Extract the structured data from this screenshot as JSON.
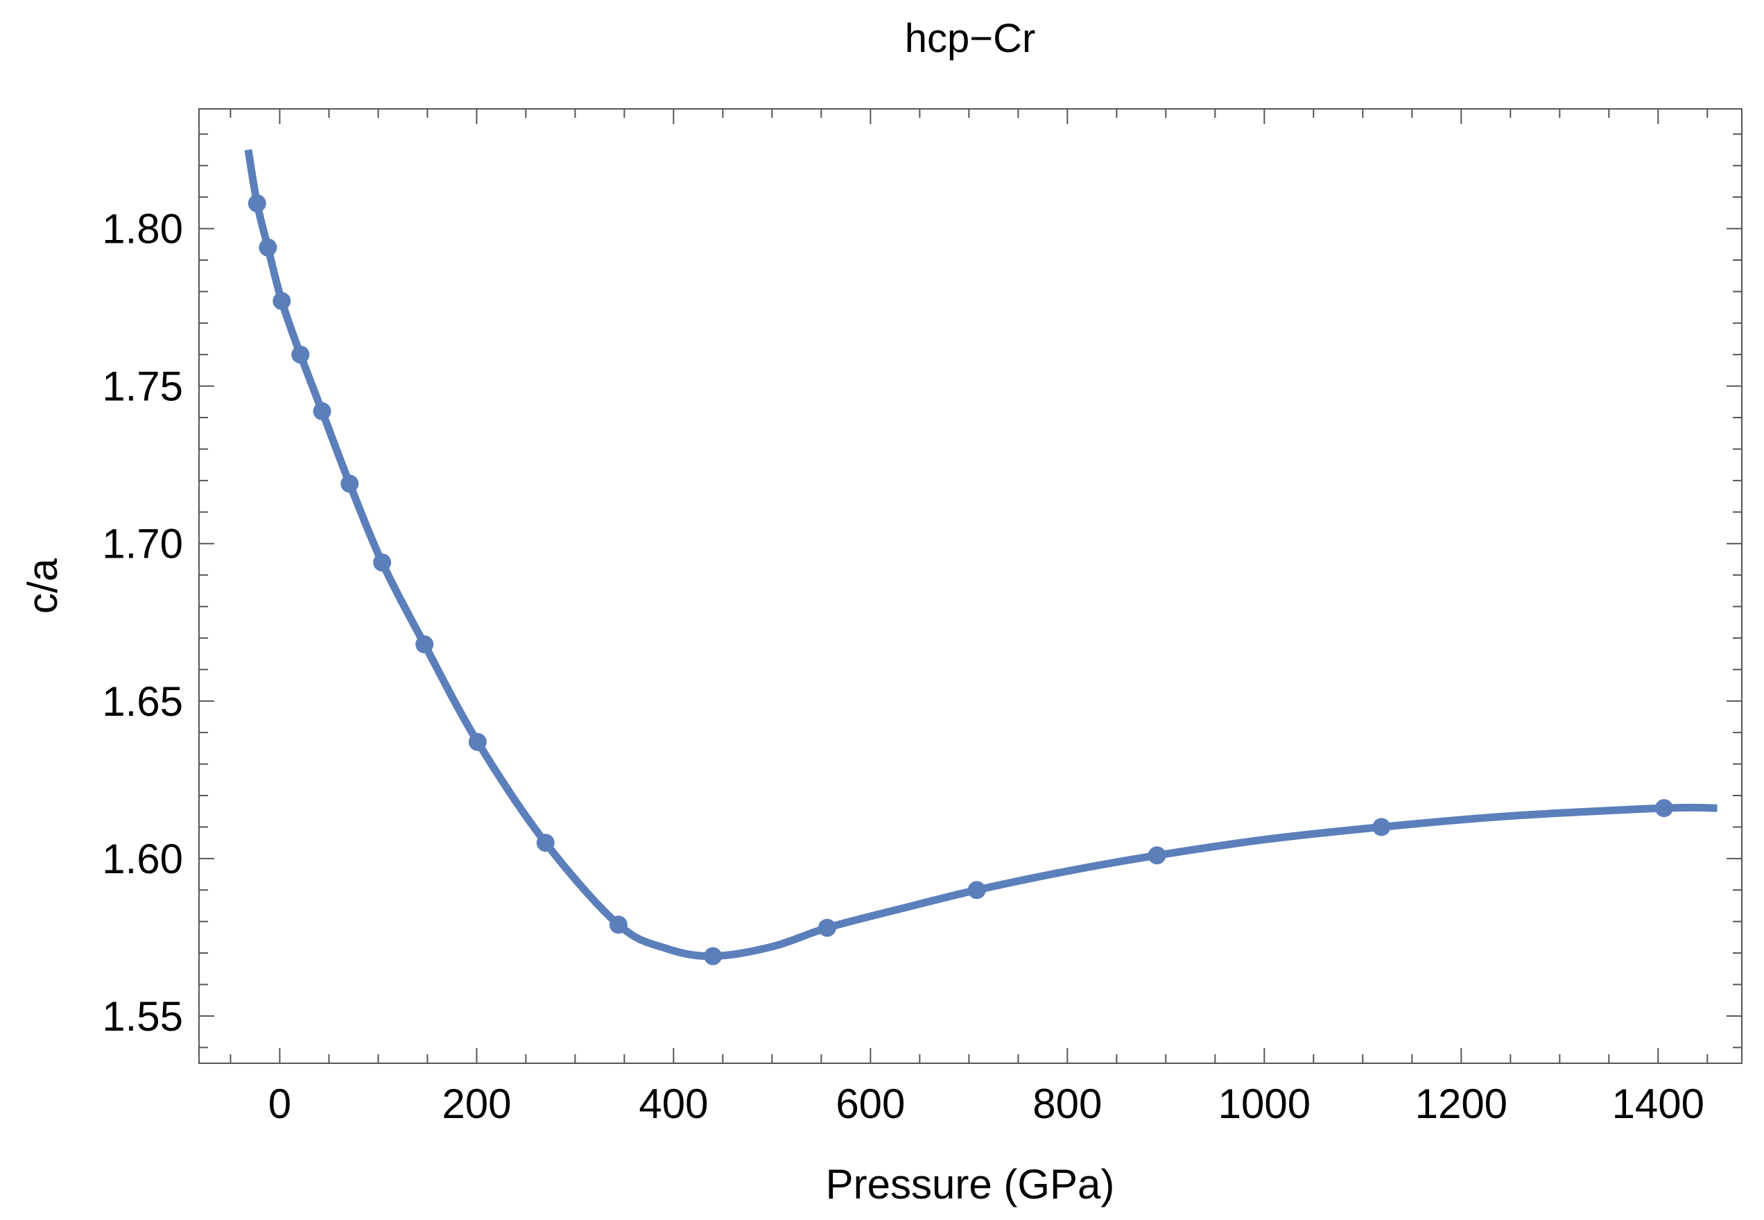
{
  "chart_data": {
    "type": "line",
    "title": "hcp−Cr",
    "xlabel": "Pressure (GPa)",
    "ylabel": "c/a",
    "xlim": [
      -82,
      1485
    ],
    "ylim": [
      1.535,
      1.838
    ],
    "xticks": [
      0,
      200,
      400,
      600,
      800,
      1000,
      1200,
      1400
    ],
    "xtick_labels": [
      "0",
      "200",
      "400",
      "600",
      "800",
      "1000",
      "1200",
      "1400"
    ],
    "yticks": [
      1.55,
      1.6,
      1.65,
      1.7,
      1.75,
      1.8
    ],
    "ytick_labels": [
      "1.55",
      "1.60",
      "1.65",
      "1.70",
      "1.75",
      "1.80"
    ],
    "grid": false,
    "color": "#5b7fba",
    "series": [
      {
        "name": "points",
        "style": "scatter",
        "x": [
          -23,
          -12,
          2,
          21,
          43,
          71,
          104,
          147,
          201,
          270,
          344,
          440,
          556,
          708,
          891,
          1119,
          1406
        ],
        "y": [
          1.808,
          1.794,
          1.777,
          1.76,
          1.742,
          1.719,
          1.694,
          1.668,
          1.637,
          1.605,
          1.579,
          1.569,
          1.578,
          1.59,
          1.601,
          1.61,
          1.616
        ]
      },
      {
        "name": "fit",
        "style": "line",
        "x": [
          -32,
          -23,
          -12,
          2,
          21,
          43,
          71,
          104,
          147,
          201,
          270,
          344,
          392,
          440,
          500,
          556,
          630,
          708,
          800,
          891,
          1000,
          1119,
          1250,
          1406,
          1460
        ],
        "y": [
          1.825,
          1.808,
          1.794,
          1.777,
          1.76,
          1.742,
          1.719,
          1.694,
          1.668,
          1.637,
          1.605,
          1.579,
          1.5715,
          1.569,
          1.572,
          1.578,
          1.584,
          1.59,
          1.596,
          1.601,
          1.606,
          1.61,
          1.6135,
          1.616,
          1.616
        ]
      }
    ]
  }
}
